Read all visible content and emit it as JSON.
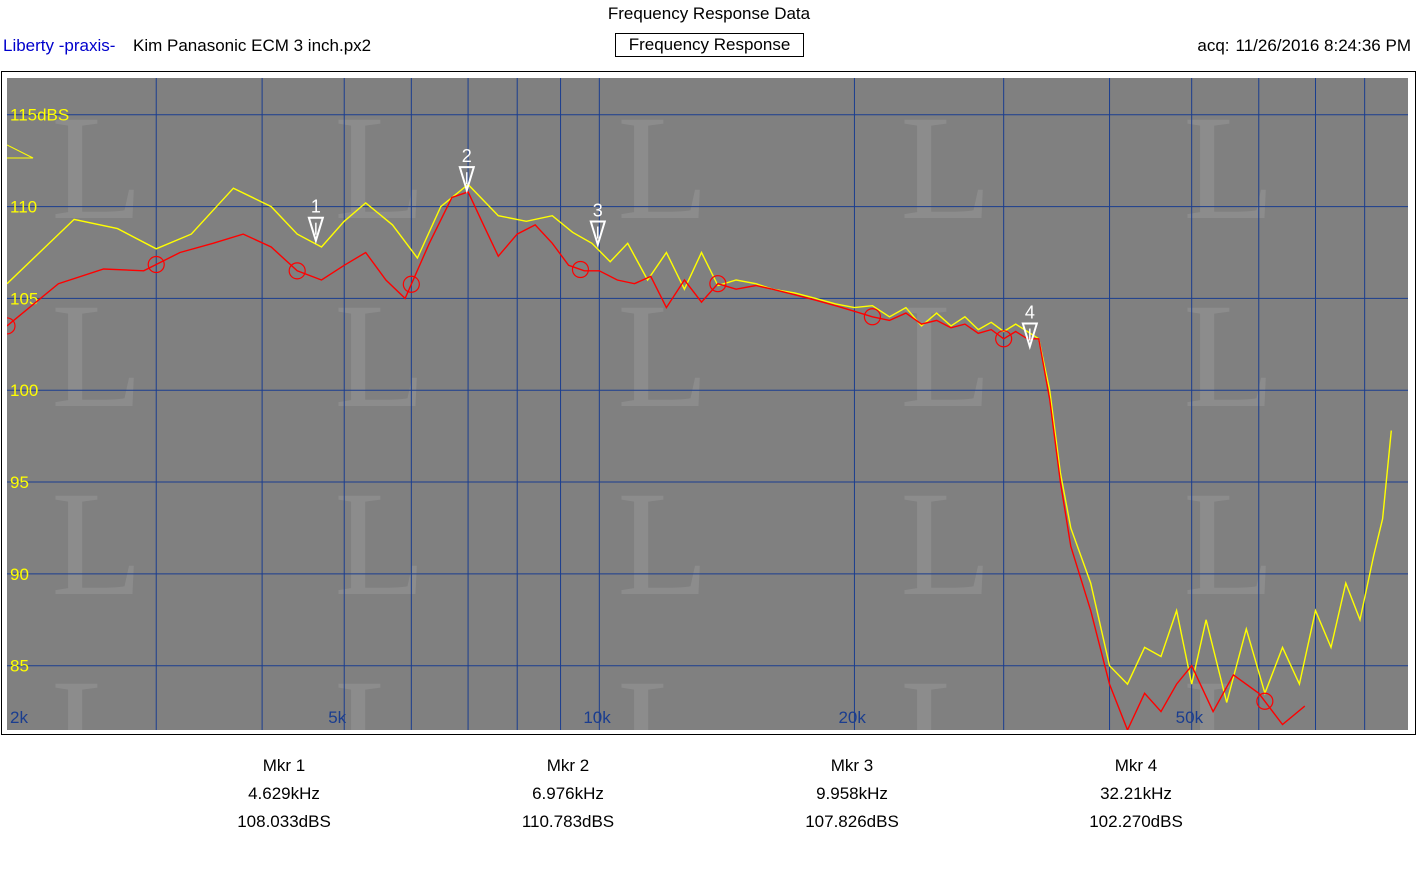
{
  "header": {
    "title": "Frequency Response Data",
    "app_name": "Liberty -praxis-",
    "file_name": "Kim Panasonic ECM 3 inch.px2",
    "graph_title": "Frequency Response",
    "acq_label": "acq:",
    "acq_value": "11/26/2016 8:24:36 PM"
  },
  "colors": {
    "plot_bg": "#808080",
    "grid": "#1a3d8f",
    "axis_text": "#ffff00",
    "freq_text": "#1a3d8f",
    "series_yellow": "#ffff00",
    "series_red": "#ff0000",
    "marker": "#ffffff"
  },
  "markers": [
    {
      "label": "Mkr 1",
      "marker_num": "1",
      "freq": "4.629kHz",
      "level": "108.033dBS",
      "freq_hz": 4629,
      "db": 108.033
    },
    {
      "label": "Mkr 2",
      "marker_num": "2",
      "freq": "6.976kHz",
      "level": "110.783dBS",
      "freq_hz": 6976,
      "db": 110.783
    },
    {
      "label": "Mkr 3",
      "marker_num": "3",
      "freq": "9.958kHz",
      "level": "107.826dBS",
      "freq_hz": 9958,
      "db": 107.826
    },
    {
      "label": "Mkr 4",
      "marker_num": "4",
      "freq": "32.21kHz",
      "level": "102.270dBS",
      "freq_hz": 32210,
      "db": 102.27
    }
  ],
  "chart_data": {
    "type": "line",
    "x_scale": "log",
    "xlim": [
      2000,
      90000
    ],
    "ylim": [
      81.5,
      117
    ],
    "y_ticks": [
      {
        "value": 115,
        "label": "115dBS"
      },
      {
        "value": 110,
        "label": "110"
      },
      {
        "value": 105,
        "label": "105"
      },
      {
        "value": 100,
        "label": "100"
      },
      {
        "value": 95,
        "label": "95"
      },
      {
        "value": 90,
        "label": "90"
      },
      {
        "value": 85,
        "label": "85"
      }
    ],
    "x_ticks": [
      {
        "value": 2000,
        "label": "2k"
      },
      {
        "value": 5000,
        "label": "5k"
      },
      {
        "value": 10000,
        "label": "10k"
      },
      {
        "value": 20000,
        "label": "20k"
      },
      {
        "value": 50000,
        "label": "50k"
      }
    ],
    "x_grid": [
      3000,
      4000,
      5000,
      6000,
      7000,
      8000,
      9000,
      10000,
      20000,
      30000,
      40000,
      50000,
      60000,
      70000,
      80000
    ],
    "series": [
      {
        "color": "yellow",
        "x": [
          2000,
          2400,
          2700,
          3000,
          3300,
          3700,
          4100,
          4400,
          4700,
          5000,
          5300,
          5700,
          6100,
          6500,
          7000,
          7600,
          8200,
          8800,
          9300,
          9800,
          10300,
          10800,
          11400,
          12000,
          12600,
          13200,
          13800,
          14500,
          15300,
          16000,
          17000,
          18000,
          19000,
          20000,
          21000,
          22000,
          23000,
          24000,
          25000,
          26000,
          27000,
          28000,
          29000,
          30000,
          31000,
          32000,
          33000,
          34000,
          35000,
          36000,
          38000,
          40000,
          42000,
          44000,
          46000,
          48000,
          50000,
          52000,
          55000,
          58000,
          61000,
          64000,
          67000,
          70000,
          73000,
          76000,
          79000,
          82000,
          84000,
          86000
        ],
        "y": [
          105.8,
          109.3,
          108.8,
          107.7,
          108.5,
          111.0,
          110.0,
          108.5,
          107.8,
          109.2,
          110.2,
          109.0,
          107.2,
          110.0,
          111.2,
          109.5,
          109.2,
          109.5,
          108.6,
          108.0,
          107.0,
          108.0,
          106.0,
          107.5,
          105.5,
          107.5,
          105.7,
          106.0,
          105.8,
          105.5,
          105.3,
          105.0,
          104.7,
          104.5,
          104.6,
          104.0,
          104.5,
          103.5,
          104.2,
          103.5,
          104.0,
          103.3,
          103.7,
          103.2,
          103.6,
          103.2,
          102.8,
          100.0,
          95.5,
          92.5,
          89.5,
          85.0,
          84.0,
          86.0,
          85.5,
          88.0,
          84.0,
          87.5,
          83.0,
          87.0,
          83.5,
          86.0,
          84.0,
          88.0,
          86.0,
          89.5,
          87.5,
          91.0,
          93.0,
          97.8
        ]
      },
      {
        "color": "red",
        "x": [
          2000,
          2300,
          2600,
          2900,
          3200,
          3500,
          3800,
          4100,
          4400,
          4700,
          5000,
          5300,
          5600,
          5900,
          6300,
          6700,
          7000,
          7300,
          7600,
          8000,
          8400,
          8800,
          9200,
          9600,
          10000,
          10500,
          11000,
          11500,
          12000,
          12600,
          13200,
          13800,
          14500,
          15300,
          16000,
          17000,
          18000,
          19000,
          20000,
          21000,
          22000,
          23000,
          24000,
          25000,
          26000,
          27000,
          28000,
          29000,
          30000,
          31000,
          32000,
          33000,
          34000,
          35000,
          36000,
          38000,
          40000,
          42000,
          44000,
          46000,
          48000,
          50000,
          53000,
          56000,
          60000,
          64000,
          68000
        ],
        "y": [
          103.5,
          105.8,
          106.6,
          106.5,
          107.5,
          108.0,
          108.5,
          107.8,
          106.5,
          106.0,
          106.8,
          107.5,
          106.0,
          105.0,
          108.0,
          110.5,
          110.8,
          109.0,
          107.3,
          108.5,
          109.0,
          108.0,
          106.8,
          106.5,
          106.5,
          106.0,
          105.8,
          106.2,
          104.5,
          106.0,
          104.8,
          105.8,
          105.5,
          105.7,
          105.5,
          105.2,
          104.9,
          104.6,
          104.3,
          104.0,
          103.8,
          104.2,
          103.6,
          103.8,
          103.4,
          103.6,
          103.1,
          103.3,
          102.8,
          103.2,
          102.8,
          102.8,
          99.5,
          95.0,
          91.5,
          88.0,
          84.0,
          81.5,
          83.5,
          82.5,
          84.0,
          85.0,
          82.5,
          84.5,
          83.5,
          81.8,
          82.8
        ]
      }
    ]
  }
}
